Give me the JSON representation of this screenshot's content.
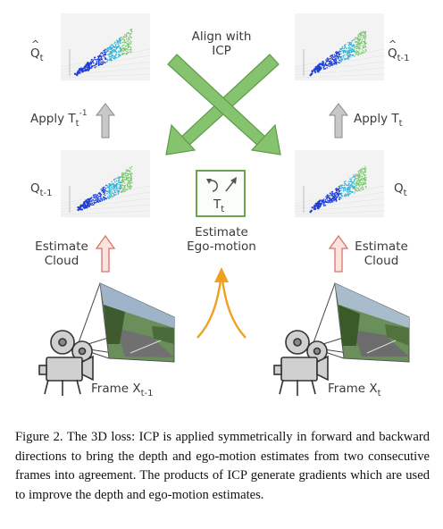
{
  "labels": {
    "q_hat_t": {
      "base": "Q",
      "sub": "t"
    },
    "q_hat_t_minus_1": {
      "base": "Q",
      "sub": "t-1"
    },
    "q_t_minus_1": {
      "base": "Q",
      "sub": "t-1"
    },
    "q_t": {
      "base": "Q",
      "sub": "t"
    },
    "align": [
      "Align with",
      "ICP"
    ],
    "apply_left": {
      "text": "Apply T",
      "sub": "t",
      "sup": "-1"
    },
    "apply_right": {
      "text": "Apply T",
      "sub": "t"
    },
    "transform": {
      "base": "T",
      "sub": "t"
    },
    "ego_motion": [
      "Estimate",
      "Ego-motion"
    ],
    "estimate_cloud_left": [
      "Estimate",
      "Cloud"
    ],
    "estimate_cloud_right": [
      "Estimate",
      "Cloud"
    ],
    "frame_left": {
      "text": "Frame X",
      "sub": "t-1"
    },
    "frame_right": {
      "text": "Frame X",
      "sub": "t"
    }
  },
  "caption": "Figure 2. The 3D loss: ICP is applied symmetrically in forward and backward directions to bring the depth and ego-motion estimates from two consecutive frames into agreement. The products of ICP generate gradients which are used to improve the depth and ego-motion estimates.",
  "colors": {
    "green": "#86c36e",
    "green_dark": "#5f9a4a",
    "gray": "#c8c8c8",
    "gray_dark": "#8a8a8a",
    "red_fill": "#fbe3de",
    "red_stroke": "#d9736a",
    "orange": "#f0a020",
    "cloud_blue": "#1f3fd8",
    "cloud_cyan": "#35b3d6",
    "cloud_green": "#7cc870"
  },
  "icons": [
    "point-cloud",
    "align-cross-arrows",
    "ego-motion-icon",
    "video-camera-icon",
    "road-image"
  ]
}
